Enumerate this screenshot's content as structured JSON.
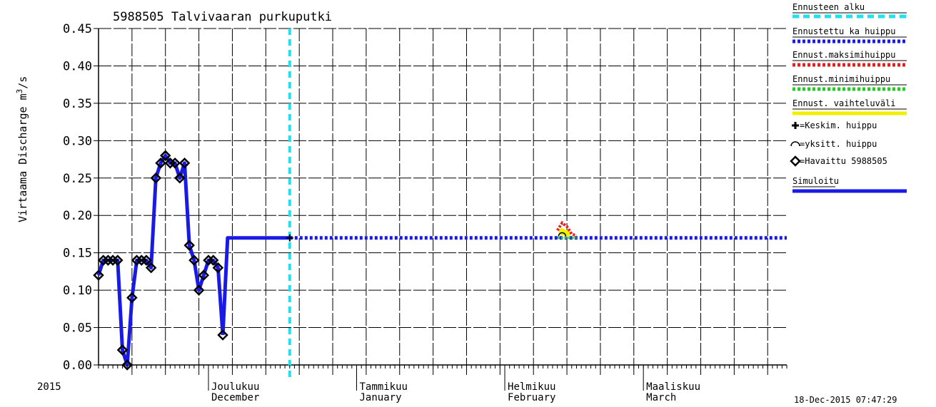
{
  "chart_data": {
    "type": "line",
    "title": "5988505 Talvivaaran purkuputki",
    "ylabel": "Virtaama Discharge m",
    "ylabel_sup": "3",
    "ylabel_unit": "/s",
    "ylim": [
      0,
      0.45
    ],
    "yticks": [
      "0.00",
      "0.05",
      "0.10",
      "0.15",
      "0.20",
      "0.25",
      "0.30",
      "0.35",
      "0.40",
      "0.45"
    ],
    "year_label": "2015",
    "xlim": [
      "2015-11-08",
      "2016-03-31"
    ],
    "months": [
      {
        "fi": "Joulukuu",
        "en": "December",
        "date": "2015-12-01"
      },
      {
        "fi": "Tammikuu",
        "en": "January",
        "date": "2016-01-01"
      },
      {
        "fi": "Helmikuu",
        "en": "February",
        "date": "2016-02-01"
      },
      {
        "fi": "Maaliskuu",
        "en": "March",
        "date": "2016-03-01"
      }
    ],
    "forecast_start": "2015-12-18",
    "timestamp": "18-Dec-2015 07:47:29",
    "observed": [
      {
        "x": "2015-11-08",
        "y": 0.12
      },
      {
        "x": "2015-11-09",
        "y": 0.14
      },
      {
        "x": "2015-11-10",
        "y": 0.14
      },
      {
        "x": "2015-11-11",
        "y": 0.14
      },
      {
        "x": "2015-11-12",
        "y": 0.14
      },
      {
        "x": "2015-11-13",
        "y": 0.02
      },
      {
        "x": "2015-11-14",
        "y": 0.0
      },
      {
        "x": "2015-11-15",
        "y": 0.09
      },
      {
        "x": "2015-11-16",
        "y": 0.14
      },
      {
        "x": "2015-11-17",
        "y": 0.14
      },
      {
        "x": "2015-11-18",
        "y": 0.14
      },
      {
        "x": "2015-11-19",
        "y": 0.13
      },
      {
        "x": "2015-11-20",
        "y": 0.25
      },
      {
        "x": "2015-11-21",
        "y": 0.27
      },
      {
        "x": "2015-11-22",
        "y": 0.28
      },
      {
        "x": "2015-11-23",
        "y": 0.27
      },
      {
        "x": "2015-11-24",
        "y": 0.27
      },
      {
        "x": "2015-11-25",
        "y": 0.25
      },
      {
        "x": "2015-11-26",
        "y": 0.27
      },
      {
        "x": "2015-11-27",
        "y": 0.16
      },
      {
        "x": "2015-11-28",
        "y": 0.14
      },
      {
        "x": "2015-11-29",
        "y": 0.1
      },
      {
        "x": "2015-11-30",
        "y": 0.12
      },
      {
        "x": "2015-12-01",
        "y": 0.14
      },
      {
        "x": "2015-12-02",
        "y": 0.14
      },
      {
        "x": "2015-12-03",
        "y": 0.13
      },
      {
        "x": "2015-12-04",
        "y": 0.04
      }
    ],
    "simulated": [
      {
        "x": "2015-12-04",
        "y": 0.04
      },
      {
        "x": "2015-12-05",
        "y": 0.17
      },
      {
        "x": "2015-12-18",
        "y": 0.17
      }
    ],
    "forecast_mean_peak": [
      {
        "x": "2015-12-18",
        "y": 0.17
      },
      {
        "x": "2016-03-31",
        "y": 0.17
      }
    ],
    "forecast_max_peak": [
      {
        "x": "2016-02-12",
        "y": 0.18
      },
      {
        "x": "2016-02-13",
        "y": 0.19
      },
      {
        "x": "2016-02-14",
        "y": 0.185
      },
      {
        "x": "2016-02-15",
        "y": 0.175
      },
      {
        "x": "2016-02-16",
        "y": 0.173
      }
    ],
    "forecast_min_peak": [
      {
        "x": "2016-02-12",
        "y": 0.17
      },
      {
        "x": "2016-02-16",
        "y": 0.17
      }
    ],
    "forecast_range_points": [
      {
        "x": "2016-02-13",
        "y": 0.178
      },
      {
        "x": "2016-02-14",
        "y": 0.176
      }
    ],
    "mean_peak_markers": [
      {
        "x": "2015-12-18",
        "y": 0.17
      }
    ],
    "single_peak_markers": [
      {
        "x": "2016-02-13",
        "y": 0.175
      }
    ],
    "legend": [
      {
        "label": "Ennusteen alku",
        "color": "#22e0ef",
        "style": "dash"
      },
      {
        "label": "Ennustettu ka huippu",
        "color": "#1a1ae6",
        "style": "dot"
      },
      {
        "label": "Ennust.maksimihuippu",
        "color": "#e62020",
        "style": "dot"
      },
      {
        "label": "Ennust.minimihuippu",
        "color": "#20d020",
        "style": "dot"
      },
      {
        "label": "Ennust. vaihteluväli",
        "color": "#f0f000",
        "style": "solid"
      },
      {
        "label": "=Keskim. huippu",
        "color": "#000000",
        "style": "plus"
      },
      {
        "label": "=yksitt. huippu",
        "color": "#000000",
        "style": "arc"
      },
      {
        "label": "=Havaittu 5988505",
        "color": "#000000",
        "style": "diamond"
      },
      {
        "label": "Simuloitu",
        "color": "#1a1ae6",
        "style": "solid"
      }
    ],
    "grid": true,
    "legend_position": "right"
  }
}
